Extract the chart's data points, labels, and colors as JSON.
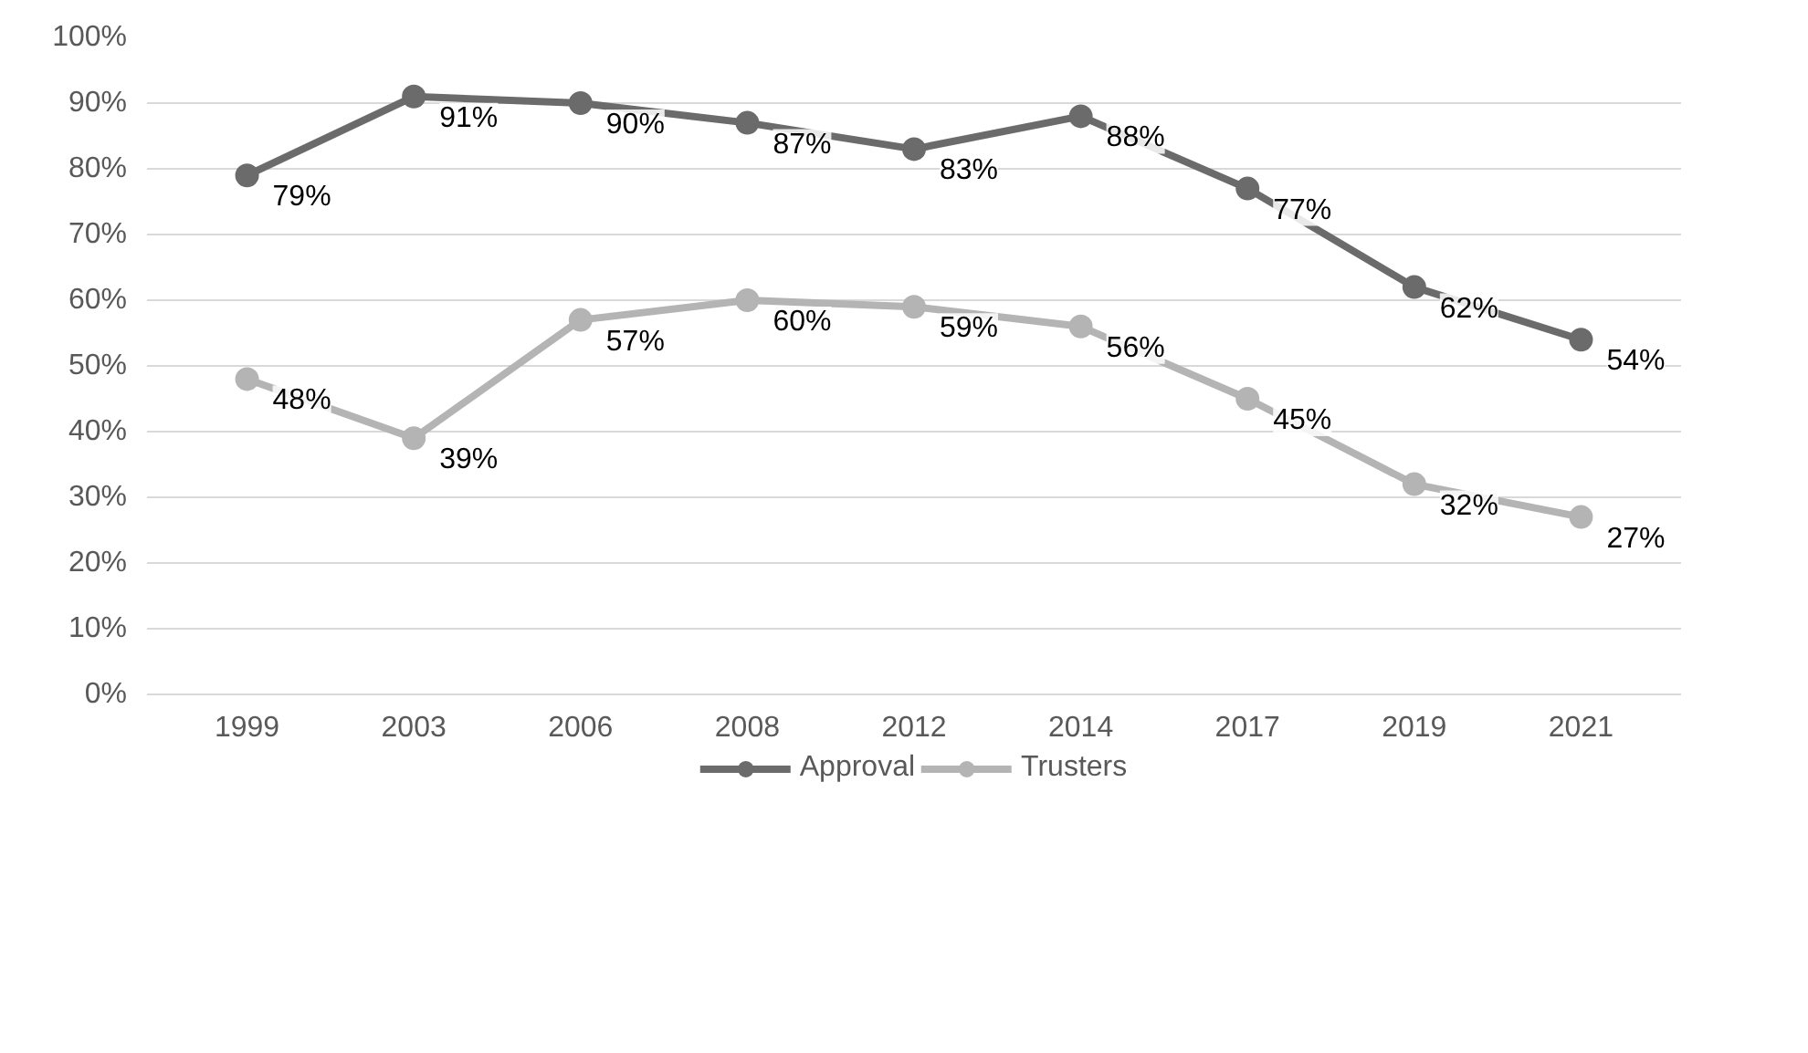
{
  "chart_data": {
    "type": "line",
    "categories": [
      "1999",
      "2003",
      "2006",
      "2008",
      "2012",
      "2014",
      "2017",
      "2019",
      "2021"
    ],
    "series": [
      {
        "name": "Approval",
        "color": "#6b6b6b",
        "values": [
          79,
          91,
          90,
          87,
          83,
          88,
          77,
          62,
          54
        ],
        "value_labels": [
          "79%",
          "91%",
          "90%",
          "87%",
          "83%",
          "88%",
          "77%",
          "62%",
          "54%"
        ]
      },
      {
        "name": "Trusters",
        "color": "#b4b4b4",
        "values": [
          48,
          39,
          57,
          60,
          59,
          56,
          45,
          32,
          27
        ],
        "value_labels": [
          "48%",
          "39%",
          "57%",
          "60%",
          "59%",
          "56%",
          "45%",
          "32%",
          "27%"
        ]
      }
    ],
    "ylim": [
      0,
      100
    ],
    "yticks": [
      {
        "value": 0,
        "label": "0%"
      },
      {
        "value": 10,
        "label": "10%"
      },
      {
        "value": 20,
        "label": "20%"
      },
      {
        "value": 30,
        "label": "30%"
      },
      {
        "value": 40,
        "label": "40%"
      },
      {
        "value": 50,
        "label": "50%"
      },
      {
        "value": 60,
        "label": "60%"
      },
      {
        "value": 70,
        "label": "70%"
      },
      {
        "value": 80,
        "label": "80%"
      },
      {
        "value": 90,
        "label": "90%"
      },
      {
        "value": 100,
        "label": "100%"
      }
    ],
    "grid": "y",
    "legend": "bottom",
    "marker": "circle",
    "line_style": "solid"
  }
}
